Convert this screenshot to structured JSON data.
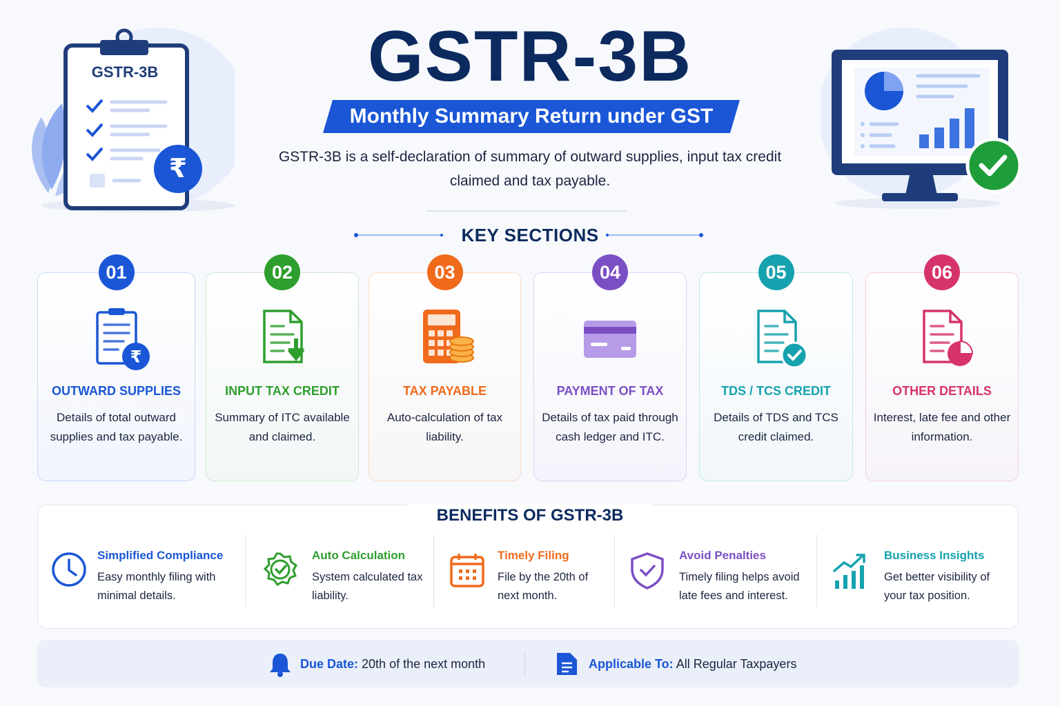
{
  "header": {
    "title": "GSTR-3B",
    "subtitle": "Monthly Summary Return under GST",
    "description": "GSTR-3B is a self-declaration of summary of outward supplies, input tax credit claimed and tax payable."
  },
  "illustration": {
    "clipboard_label": "GSTR-3B",
    "currency_symbol": "₹"
  },
  "key_sections": {
    "heading": "KEY SECTIONS",
    "items": [
      {
        "number": "01",
        "title": "OUTWARD SUPPLIES",
        "description": "Details of total outward supplies and tax payable."
      },
      {
        "number": "02",
        "title": "INPUT TAX CREDIT",
        "description": "Summary of ITC available and claimed."
      },
      {
        "number": "03",
        "title": "TAX PAYABLE",
        "description": "Auto-calculation of tax liability."
      },
      {
        "number": "04",
        "title": "PAYMENT OF TAX",
        "description": "Details of tax paid through cash ledger and ITC."
      },
      {
        "number": "05",
        "title": "TDS / TCS CREDIT",
        "description": "Details of TDS and TCS credit claimed."
      },
      {
        "number": "06",
        "title": "OTHER DETAILS",
        "description": "Interest, late fee and other information."
      }
    ]
  },
  "benefits": {
    "heading": "BENEFITS OF GSTR-3B",
    "items": [
      {
        "title": "Simplified Compliance",
        "description": "Easy monthly filing with minimal details."
      },
      {
        "title": "Auto Calculation",
        "description": "System calculated tax liability."
      },
      {
        "title": "Timely Filing",
        "description": "File by the 20th of next month."
      },
      {
        "title": "Avoid Penalties",
        "description": "Timely filing helps avoid late fees and interest."
      },
      {
        "title": "Business Insights",
        "description": "Get better visibility of your tax position."
      }
    ]
  },
  "footer": {
    "due_date": {
      "label": "Due Date:",
      "value": "20th of the next month"
    },
    "applicable_to": {
      "label": "Applicable To:",
      "value": "All Regular Taxpayers"
    }
  }
}
